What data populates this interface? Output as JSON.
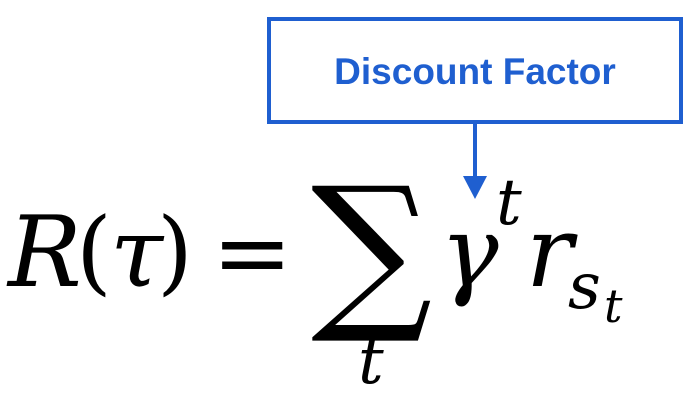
{
  "annotation": {
    "label": "Discount Factor",
    "color": "#1f5fd0",
    "target": "gamma-icon"
  },
  "equation": {
    "lhs_symbol": "R",
    "open_paren": "(",
    "lhs_argument": "τ",
    "close_paren": ")",
    "equals": "=",
    "sum_symbol": "∑",
    "sum_index": "t",
    "gamma": "γ",
    "gamma_exponent": "t",
    "reward_symbol": "r",
    "reward_subscript": "s",
    "reward_sub_subscript": "t"
  }
}
